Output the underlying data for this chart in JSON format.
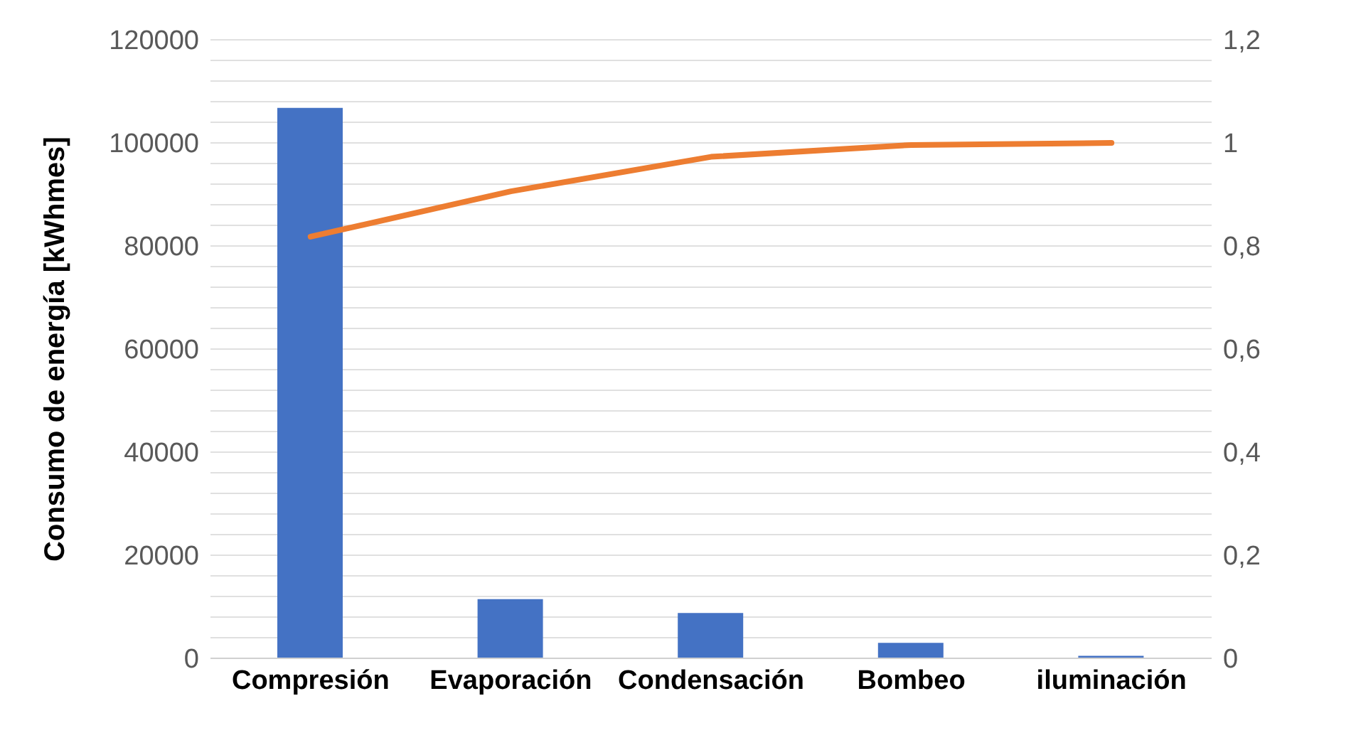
{
  "chart_data": {
    "type": "bar",
    "ylabel": "Consumo de energía [kWhmes]",
    "categories": [
      "Compresión",
      "Evaporación",
      "Condensación",
      "Bombeo",
      "iluminación"
    ],
    "series": [
      {
        "color": "#4472c4",
        "values": [
          106800,
          11500,
          8800,
          3000,
          500
        ]
      },
      {
        "type": "line",
        "axis": "y2",
        "color": "#ed7d31",
        "marker": "none",
        "values": [
          0.818,
          0.906,
          0.973,
          0.996,
          1.0
        ]
      }
    ],
    "ylim": [
      0,
      120000
    ],
    "yticks": [
      0,
      {
        "value": 4000,
        "label": null
      },
      {
        "value": 8000,
        "label": null
      },
      {
        "value": 12000,
        "label": null
      },
      {
        "value": 16000,
        "label": null
      },
      20000,
      {
        "value": 24000,
        "label": null
      },
      {
        "value": 28000,
        "label": null
      },
      {
        "value": 32000,
        "label": null
      },
      {
        "value": 36000,
        "label": null
      },
      40000,
      {
        "value": 44000,
        "label": null
      },
      {
        "value": 48000,
        "label": null
      },
      {
        "value": 52000,
        "label": null
      },
      {
        "value": 56000,
        "label": null
      },
      60000,
      {
        "value": 64000,
        "label": null
      },
      {
        "value": 68000,
        "label": null
      },
      {
        "value": 72000,
        "label": null
      },
      {
        "value": 76000,
        "label": null
      },
      80000,
      {
        "value": 84000,
        "label": null
      },
      {
        "value": 88000,
        "label": null
      },
      {
        "value": 92000,
        "label": null
      },
      {
        "value": 96000,
        "label": null
      },
      100000,
      {
        "value": 104000,
        "label": null
      },
      {
        "value": 108000,
        "label": null
      },
      {
        "value": 112000,
        "label": null
      },
      {
        "value": 116000,
        "label": null
      },
      120000
    ],
    "y2lim": [
      0,
      1.2
    ],
    "y2ticks": [
      0,
      {
        "value": 0.2,
        "label": "0,2"
      },
      {
        "value": 0.4,
        "label": "0,4"
      },
      {
        "value": 0.6,
        "label": "0,6"
      },
      {
        "value": 0.8,
        "label": "0,8"
      },
      1,
      {
        "value": 1.2,
        "label": "1,2"
      }
    ],
    "grid": "y",
    "legend": false
  }
}
